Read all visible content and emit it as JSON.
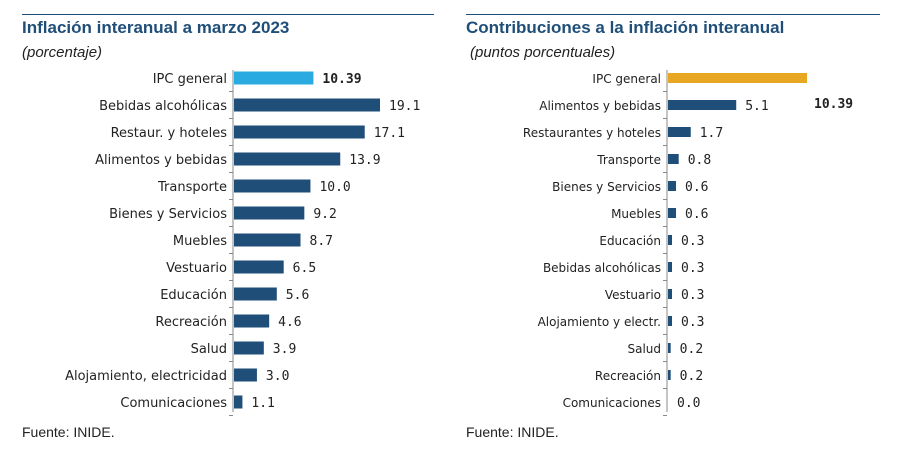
{
  "charts": [
    {
      "title": "Inflación interanual a marzo 2023",
      "subtitle": "(porcentaje)",
      "source": "Fuente: INIDE."
    },
    {
      "title": "Contribuciones a la inflación interanual",
      "subtitle": "(puntos porcentuales)",
      "source": "Fuente: INIDE."
    }
  ],
  "colors": {
    "bar": "#1f4e79",
    "highlight_left": "#29abe2",
    "highlight_right": "#e8a723",
    "title": "#1f4e79"
  },
  "chart_data": [
    {
      "type": "bar",
      "orientation": "horizontal",
      "title": "Inflación interanual a marzo 2023",
      "subtitle": "(porcentaje)",
      "categories": [
        "IPC general",
        "Bebidas alcohólicas",
        "Restaur. y hoteles",
        "Alimentos y bebidas",
        "Transporte",
        "Bienes y Servicios",
        "Muebles",
        "Vestuario",
        "Educación",
        "Recreación",
        "Salud",
        "Alojamiento, electricidad",
        "Comunicaciones"
      ],
      "values": [
        10.39,
        19.1,
        17.1,
        13.9,
        10.0,
        9.2,
        8.7,
        6.5,
        5.6,
        4.6,
        3.9,
        3.0,
        1.1
      ],
      "value_labels": [
        "10.39",
        "19.1",
        "17.1",
        "13.9",
        "10.0",
        "9.2",
        "8.7",
        "6.5",
        "5.6",
        "4.6",
        "3.9",
        "3.0",
        "1.1"
      ],
      "highlight_index": 0,
      "xlim": [
        0,
        19.1
      ],
      "grid": false
    },
    {
      "type": "bar",
      "orientation": "horizontal",
      "title": "Contribuciones a la inflación interanual",
      "subtitle": "(puntos porcentuales)",
      "categories": [
        "IPC general",
        "Alimentos y bebidas",
        "Restaurantes y hoteles",
        "Transporte",
        "Bienes y Servicios",
        "Muebles",
        "Educación",
        "Bebidas alcohólicas",
        "Vestuario",
        "Alojamiento y electr.",
        "Salud",
        "Recreación",
        "Comunicaciones"
      ],
      "values": [
        10.39,
        5.1,
        1.7,
        0.8,
        0.6,
        0.6,
        0.3,
        0.3,
        0.3,
        0.3,
        0.2,
        0.2,
        0.0
      ],
      "value_labels": [
        "10.39",
        "5.1",
        "1.7",
        "0.8",
        "0.6",
        "0.6",
        "0.3",
        "0.3",
        "0.3",
        "0.3",
        "0.2",
        "0.2",
        "0.0"
      ],
      "highlight_index": 0,
      "highlight_label_placement": "right-of-second-bar",
      "xlim": [
        0,
        10.39
      ],
      "grid": false
    }
  ]
}
